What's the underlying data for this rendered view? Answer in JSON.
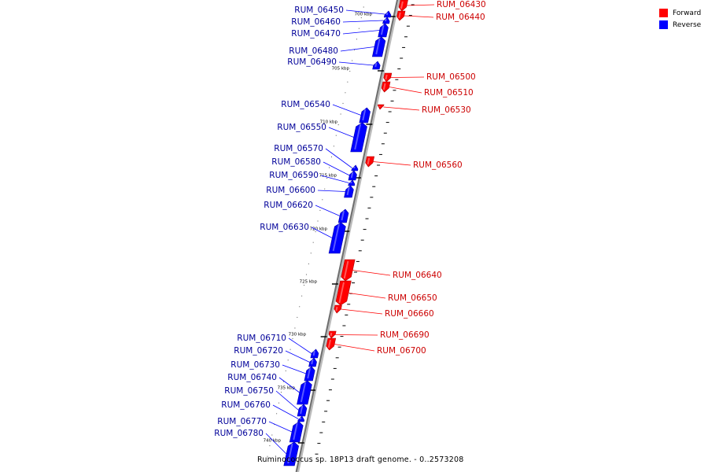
{
  "caption": "Ruminococcus sp. 18P13 draft genome. - 0..2573208",
  "legend": [
    {
      "label": "Forward",
      "color": "#ff0000"
    },
    {
      "label": "Reverse",
      "color": "#0000ff"
    }
  ],
  "colors": {
    "forward": "#ff0000",
    "reverse": "#0000ff",
    "forward_label": "#cc0000",
    "reverse_label": "#000099"
  },
  "ticks": [
    "700 kbp",
    "705 kbp",
    "710 kbp",
    "715 kbp",
    "720 kbp",
    "725 kbp",
    "730 kbp",
    "735 kbp",
    "740 kbp"
  ],
  "genes": [
    {
      "name": "RUM_06430",
      "strand": "forward"
    },
    {
      "name": "RUM_06440",
      "strand": "forward"
    },
    {
      "name": "RUM_06450",
      "strand": "reverse"
    },
    {
      "name": "RUM_06460",
      "strand": "reverse"
    },
    {
      "name": "RUM_06470",
      "strand": "reverse"
    },
    {
      "name": "RUM_06480",
      "strand": "reverse"
    },
    {
      "name": "RUM_06490",
      "strand": "reverse"
    },
    {
      "name": "RUM_06500",
      "strand": "forward"
    },
    {
      "name": "RUM_06510",
      "strand": "forward"
    },
    {
      "name": "RUM_06530",
      "strand": "forward"
    },
    {
      "name": "RUM_06540",
      "strand": "reverse"
    },
    {
      "name": "RUM_06550",
      "strand": "reverse"
    },
    {
      "name": "RUM_06560",
      "strand": "forward"
    },
    {
      "name": "RUM_06570",
      "strand": "reverse"
    },
    {
      "name": "RUM_06580",
      "strand": "reverse"
    },
    {
      "name": "RUM_06590",
      "strand": "reverse"
    },
    {
      "name": "RUM_06600",
      "strand": "reverse"
    },
    {
      "name": "RUM_06620",
      "strand": "reverse"
    },
    {
      "name": "RUM_06630",
      "strand": "reverse"
    },
    {
      "name": "RUM_06640",
      "strand": "forward"
    },
    {
      "name": "RUM_06650",
      "strand": "forward"
    },
    {
      "name": "RUM_06660",
      "strand": "forward"
    },
    {
      "name": "RUM_06690",
      "strand": "forward"
    },
    {
      "name": "RUM_06700",
      "strand": "forward"
    },
    {
      "name": "RUM_06710",
      "strand": "reverse"
    },
    {
      "name": "RUM_06720",
      "strand": "reverse"
    },
    {
      "name": "RUM_06730",
      "strand": "reverse"
    },
    {
      "name": "RUM_06740",
      "strand": "reverse"
    },
    {
      "name": "RUM_06750",
      "strand": "reverse"
    },
    {
      "name": "RUM_06760",
      "strand": "reverse"
    },
    {
      "name": "RUM_06770",
      "strand": "reverse"
    },
    {
      "name": "RUM_06780",
      "strand": "reverse"
    }
  ]
}
